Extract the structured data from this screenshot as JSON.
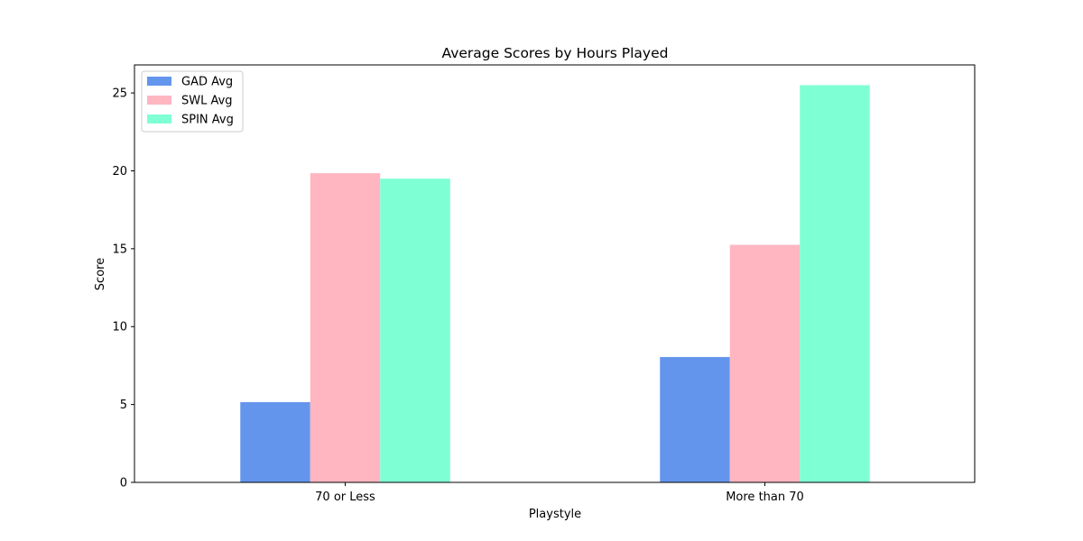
{
  "chart_data": {
    "type": "bar",
    "title": "Average Scores by Hours Played",
    "xlabel": "Playstyle",
    "ylabel": "Score",
    "categories": [
      "70 or Less",
      "More than 70"
    ],
    "series": [
      {
        "name": "GAD Avg",
        "color": "#6495ed",
        "values": [
          5.15,
          8.05
        ]
      },
      {
        "name": "SWL Avg",
        "color": "#ffb6c1",
        "values": [
          19.85,
          15.25
        ]
      },
      {
        "name": "SPIN Avg",
        "color": "#7fffd4",
        "values": [
          19.5,
          25.5
        ]
      }
    ],
    "ylim": [
      0,
      26.8
    ],
    "yticks": [
      0,
      5,
      10,
      15,
      20,
      25
    ],
    "grid": false,
    "legend": "upper-left"
  }
}
